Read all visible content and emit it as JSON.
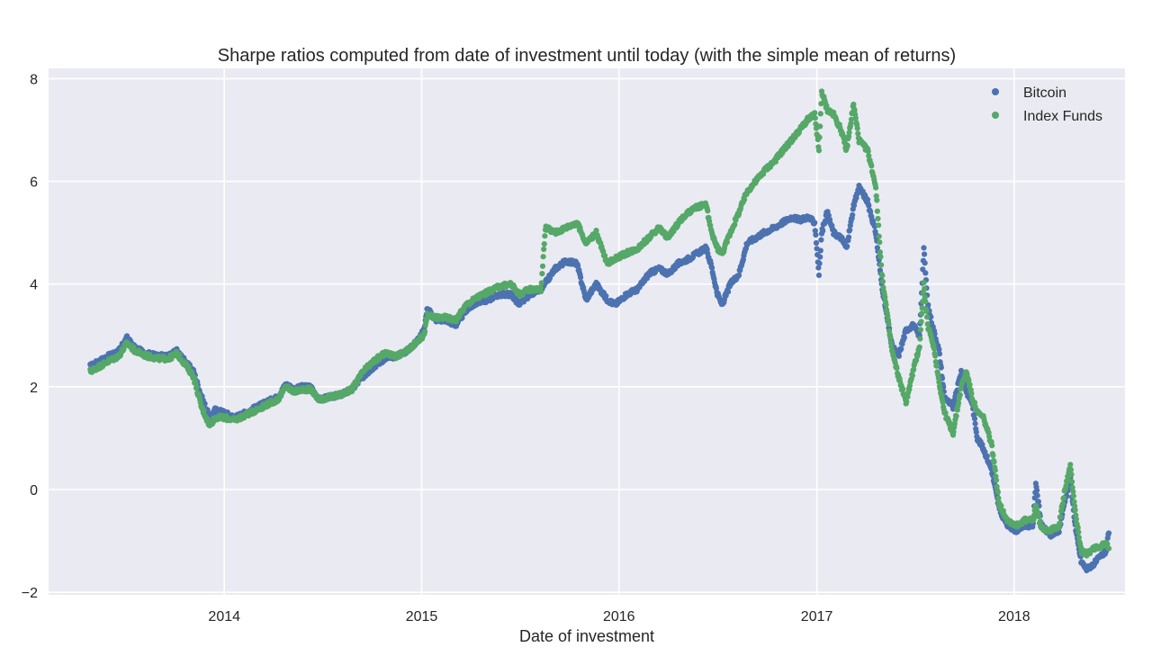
{
  "chart_data": {
    "type": "scatter",
    "title": "Sharpe ratios computed from date of investment until today (with the simple mean of returns)",
    "xlabel": "Date of investment",
    "ylabel": "",
    "x_axis_type": "date",
    "xlim": [
      "2013-02-10",
      "2018-07-25"
    ],
    "ylim": [
      -2.05,
      8.2
    ],
    "xticks": [
      {
        "date": "2014-01-01",
        "label": "2014"
      },
      {
        "date": "2015-01-01",
        "label": "2015"
      },
      {
        "date": "2016-01-01",
        "label": "2016"
      },
      {
        "date": "2017-01-01",
        "label": "2017"
      },
      {
        "date": "2018-01-01",
        "label": "2018"
      }
    ],
    "yticks": [
      -2,
      0,
      2,
      4,
      6,
      8
    ],
    "grid": true,
    "legend": "top-right",
    "background": "#eaeaf2",
    "series": [
      {
        "name": "Bitcoin",
        "color": "#4c72b0",
        "points": [
          [
            "2013-04-28",
            2.4
          ],
          [
            "2013-05-15",
            2.5
          ],
          [
            "2013-06-01",
            2.6
          ],
          [
            "2013-06-20",
            2.7
          ],
          [
            "2013-07-05",
            2.95
          ],
          [
            "2013-07-20",
            2.75
          ],
          [
            "2013-08-10",
            2.65
          ],
          [
            "2013-09-01",
            2.6
          ],
          [
            "2013-09-20",
            2.6
          ],
          [
            "2013-10-05",
            2.7
          ],
          [
            "2013-10-20",
            2.5
          ],
          [
            "2013-11-05",
            2.3
          ],
          [
            "2013-11-20",
            1.8
          ],
          [
            "2013-12-05",
            1.4
          ],
          [
            "2013-12-15",
            1.55
          ],
          [
            "2014-01-01",
            1.5
          ],
          [
            "2014-01-20",
            1.4
          ],
          [
            "2014-02-10",
            1.5
          ],
          [
            "2014-03-01",
            1.6
          ],
          [
            "2014-03-20",
            1.7
          ],
          [
            "2014-04-10",
            1.8
          ],
          [
            "2014-04-25",
            2.05
          ],
          [
            "2014-05-10",
            1.95
          ],
          [
            "2014-05-25",
            2.0
          ],
          [
            "2014-06-10",
            2.0
          ],
          [
            "2014-06-25",
            1.75
          ],
          [
            "2014-07-15",
            1.8
          ],
          [
            "2014-08-05",
            1.85
          ],
          [
            "2014-08-25",
            1.95
          ],
          [
            "2014-09-15",
            2.2
          ],
          [
            "2014-10-05",
            2.4
          ],
          [
            "2014-10-25",
            2.55
          ],
          [
            "2014-11-15",
            2.6
          ],
          [
            "2014-12-05",
            2.7
          ],
          [
            "2014-12-25",
            2.9
          ],
          [
            "2015-01-05",
            3.1
          ],
          [
            "2015-01-12",
            3.55
          ],
          [
            "2015-01-25",
            3.3
          ],
          [
            "2015-02-15",
            3.3
          ],
          [
            "2015-03-05",
            3.2
          ],
          [
            "2015-03-25",
            3.5
          ],
          [
            "2015-04-15",
            3.65
          ],
          [
            "2015-05-05",
            3.7
          ],
          [
            "2015-05-25",
            3.8
          ],
          [
            "2015-06-15",
            3.8
          ],
          [
            "2015-07-01",
            3.6
          ],
          [
            "2015-07-20",
            3.8
          ],
          [
            "2015-08-10",
            3.9
          ],
          [
            "2015-08-20",
            4.05
          ],
          [
            "2015-09-05",
            4.3
          ],
          [
            "2015-09-25",
            4.45
          ],
          [
            "2015-10-15",
            4.4
          ],
          [
            "2015-11-01",
            3.7
          ],
          [
            "2015-11-20",
            4.0
          ],
          [
            "2015-12-10",
            3.7
          ],
          [
            "2015-12-25",
            3.6
          ],
          [
            "2016-01-15",
            3.8
          ],
          [
            "2016-02-05",
            3.9
          ],
          [
            "2016-02-25",
            4.2
          ],
          [
            "2016-03-15",
            4.3
          ],
          [
            "2016-04-01",
            4.2
          ],
          [
            "2016-04-20",
            4.4
          ],
          [
            "2016-05-10",
            4.5
          ],
          [
            "2016-05-25",
            4.6
          ],
          [
            "2016-06-10",
            4.7
          ],
          [
            "2016-06-20",
            4.35
          ],
          [
            "2016-07-01",
            3.8
          ],
          [
            "2016-07-10",
            3.6
          ],
          [
            "2016-07-25",
            4.0
          ],
          [
            "2016-08-10",
            4.2
          ],
          [
            "2016-08-25",
            4.8
          ],
          [
            "2016-09-10",
            4.9
          ],
          [
            "2016-09-25",
            5.0
          ],
          [
            "2016-10-15",
            5.1
          ],
          [
            "2016-10-30",
            5.2
          ],
          [
            "2016-11-15",
            5.3
          ],
          [
            "2016-11-30",
            5.25
          ],
          [
            "2016-12-15",
            5.3
          ],
          [
            "2016-12-28",
            5.2
          ],
          [
            "2017-01-05",
            4.2
          ],
          [
            "2017-01-10",
            5.0
          ],
          [
            "2017-01-20",
            5.4
          ],
          [
            "2017-02-01",
            5.0
          ],
          [
            "2017-02-15",
            4.9
          ],
          [
            "2017-02-25",
            4.7
          ],
          [
            "2017-03-10",
            5.5
          ],
          [
            "2017-03-20",
            5.9
          ],
          [
            "2017-04-05",
            5.6
          ],
          [
            "2017-04-20",
            5.0
          ],
          [
            "2017-05-01",
            4.0
          ],
          [
            "2017-05-10",
            3.4
          ],
          [
            "2017-05-20",
            2.8
          ],
          [
            "2017-06-01",
            2.6
          ],
          [
            "2017-06-15",
            3.1
          ],
          [
            "2017-06-28",
            3.2
          ],
          [
            "2017-07-10",
            3.0
          ],
          [
            "2017-07-18",
            4.7
          ],
          [
            "2017-07-25",
            3.6
          ],
          [
            "2017-08-05",
            3.1
          ],
          [
            "2017-08-15",
            2.7
          ],
          [
            "2017-08-25",
            1.8
          ],
          [
            "2017-09-10",
            1.6
          ],
          [
            "2017-09-25",
            2.3
          ],
          [
            "2017-10-05",
            1.9
          ],
          [
            "2017-10-15",
            1.7
          ],
          [
            "2017-10-25",
            1.0
          ],
          [
            "2017-11-05",
            0.8
          ],
          [
            "2017-11-20",
            0.4
          ],
          [
            "2017-12-05",
            -0.4
          ],
          [
            "2017-12-20",
            -0.7
          ],
          [
            "2018-01-05",
            -0.8
          ],
          [
            "2018-01-20",
            -0.7
          ],
          [
            "2018-02-05",
            -0.7
          ],
          [
            "2018-02-10",
            0.15
          ],
          [
            "2018-02-20",
            -0.7
          ],
          [
            "2018-03-10",
            -0.9
          ],
          [
            "2018-03-25",
            -0.8
          ],
          [
            "2018-04-05",
            -0.2
          ],
          [
            "2018-04-15",
            0.2
          ],
          [
            "2018-04-25",
            -0.8
          ],
          [
            "2018-05-05",
            -1.4
          ],
          [
            "2018-05-15",
            -1.55
          ],
          [
            "2018-05-28",
            -1.45
          ],
          [
            "2018-06-10",
            -1.3
          ],
          [
            "2018-06-20",
            -1.2
          ],
          [
            "2018-06-25",
            -0.85
          ]
        ]
      },
      {
        "name": "Index Funds",
        "color": "#55a868",
        "points": [
          [
            "2013-04-28",
            2.3
          ],
          [
            "2013-05-15",
            2.4
          ],
          [
            "2013-06-01",
            2.5
          ],
          [
            "2013-06-20",
            2.6
          ],
          [
            "2013-07-05",
            2.85
          ],
          [
            "2013-07-20",
            2.7
          ],
          [
            "2013-08-10",
            2.6
          ],
          [
            "2013-09-01",
            2.55
          ],
          [
            "2013-09-20",
            2.55
          ],
          [
            "2013-10-05",
            2.65
          ],
          [
            "2013-10-20",
            2.45
          ],
          [
            "2013-11-05",
            2.2
          ],
          [
            "2013-11-20",
            1.6
          ],
          [
            "2013-12-05",
            1.25
          ],
          [
            "2013-12-15",
            1.4
          ],
          [
            "2014-01-01",
            1.4
          ],
          [
            "2014-01-20",
            1.35
          ],
          [
            "2014-02-10",
            1.45
          ],
          [
            "2014-03-01",
            1.55
          ],
          [
            "2014-03-20",
            1.65
          ],
          [
            "2014-04-10",
            1.75
          ],
          [
            "2014-04-25",
            2.0
          ],
          [
            "2014-05-10",
            1.9
          ],
          [
            "2014-05-25",
            1.95
          ],
          [
            "2014-06-10",
            1.95
          ],
          [
            "2014-06-25",
            1.75
          ],
          [
            "2014-07-15",
            1.8
          ],
          [
            "2014-08-05",
            1.85
          ],
          [
            "2014-08-25",
            1.95
          ],
          [
            "2014-09-15",
            2.3
          ],
          [
            "2014-10-05",
            2.5
          ],
          [
            "2014-10-25",
            2.65
          ],
          [
            "2014-11-15",
            2.6
          ],
          [
            "2014-12-05",
            2.7
          ],
          [
            "2014-12-25",
            2.9
          ],
          [
            "2015-01-05",
            3.0
          ],
          [
            "2015-01-12",
            3.4
          ],
          [
            "2015-01-25",
            3.35
          ],
          [
            "2015-02-15",
            3.35
          ],
          [
            "2015-03-05",
            3.3
          ],
          [
            "2015-03-25",
            3.6
          ],
          [
            "2015-04-15",
            3.75
          ],
          [
            "2015-05-05",
            3.85
          ],
          [
            "2015-05-25",
            3.95
          ],
          [
            "2015-06-15",
            4.0
          ],
          [
            "2015-07-01",
            3.8
          ],
          [
            "2015-07-20",
            3.9
          ],
          [
            "2015-08-10",
            3.9
          ],
          [
            "2015-08-18",
            5.1
          ],
          [
            "2015-09-05",
            5.0
          ],
          [
            "2015-09-25",
            5.1
          ],
          [
            "2015-10-15",
            5.2
          ],
          [
            "2015-11-01",
            4.8
          ],
          [
            "2015-11-20",
            5.0
          ],
          [
            "2015-12-10",
            4.4
          ],
          [
            "2015-12-25",
            4.5
          ],
          [
            "2016-01-15",
            4.6
          ],
          [
            "2016-02-05",
            4.7
          ],
          [
            "2016-02-25",
            4.9
          ],
          [
            "2016-03-15",
            5.1
          ],
          [
            "2016-04-01",
            4.9
          ],
          [
            "2016-04-20",
            5.2
          ],
          [
            "2016-05-10",
            5.4
          ],
          [
            "2016-05-25",
            5.5
          ],
          [
            "2016-06-10",
            5.55
          ],
          [
            "2016-06-20",
            5.0
          ],
          [
            "2016-07-01",
            4.7
          ],
          [
            "2016-07-10",
            4.6
          ],
          [
            "2016-07-25",
            5.0
          ],
          [
            "2016-08-10",
            5.4
          ],
          [
            "2016-08-25",
            5.8
          ],
          [
            "2016-09-10",
            6.0
          ],
          [
            "2016-09-25",
            6.2
          ],
          [
            "2016-10-15",
            6.4
          ],
          [
            "2016-10-30",
            6.6
          ],
          [
            "2016-11-15",
            6.8
          ],
          [
            "2016-11-30",
            7.0
          ],
          [
            "2016-12-15",
            7.2
          ],
          [
            "2016-12-28",
            7.3
          ],
          [
            "2017-01-05",
            6.6
          ],
          [
            "2017-01-10",
            7.75
          ],
          [
            "2017-01-20",
            7.4
          ],
          [
            "2017-02-01",
            7.3
          ],
          [
            "2017-02-15",
            7.0
          ],
          [
            "2017-02-25",
            6.6
          ],
          [
            "2017-03-10",
            7.5
          ],
          [
            "2017-03-20",
            6.8
          ],
          [
            "2017-04-05",
            6.6
          ],
          [
            "2017-04-20",
            5.9
          ],
          [
            "2017-05-01",
            4.2
          ],
          [
            "2017-05-10",
            3.5
          ],
          [
            "2017-05-20",
            2.7
          ],
          [
            "2017-06-01",
            2.2
          ],
          [
            "2017-06-15",
            1.7
          ],
          [
            "2017-06-28",
            2.3
          ],
          [
            "2017-07-10",
            2.8
          ],
          [
            "2017-07-18",
            4.0
          ],
          [
            "2017-07-25",
            3.2
          ],
          [
            "2017-08-05",
            2.8
          ],
          [
            "2017-08-15",
            2.1
          ],
          [
            "2017-08-25",
            1.5
          ],
          [
            "2017-09-10",
            1.1
          ],
          [
            "2017-09-25",
            2.0
          ],
          [
            "2017-10-05",
            2.3
          ],
          [
            "2017-10-15",
            1.8
          ],
          [
            "2017-10-25",
            1.5
          ],
          [
            "2017-11-05",
            1.4
          ],
          [
            "2017-11-20",
            0.9
          ],
          [
            "2017-12-05",
            -0.3
          ],
          [
            "2017-12-20",
            -0.6
          ],
          [
            "2018-01-05",
            -0.7
          ],
          [
            "2018-01-20",
            -0.6
          ],
          [
            "2018-02-05",
            -0.6
          ],
          [
            "2018-02-10",
            -0.3
          ],
          [
            "2018-02-20",
            -0.75
          ],
          [
            "2018-03-10",
            -0.8
          ],
          [
            "2018-03-25",
            -0.7
          ],
          [
            "2018-04-05",
            0.0
          ],
          [
            "2018-04-15",
            0.45
          ],
          [
            "2018-04-25",
            -0.5
          ],
          [
            "2018-05-05",
            -1.2
          ],
          [
            "2018-05-15",
            -1.25
          ],
          [
            "2018-05-28",
            -1.15
          ],
          [
            "2018-06-10",
            -1.1
          ],
          [
            "2018-06-20",
            -1.05
          ],
          [
            "2018-06-25",
            -1.15
          ]
        ]
      }
    ]
  }
}
